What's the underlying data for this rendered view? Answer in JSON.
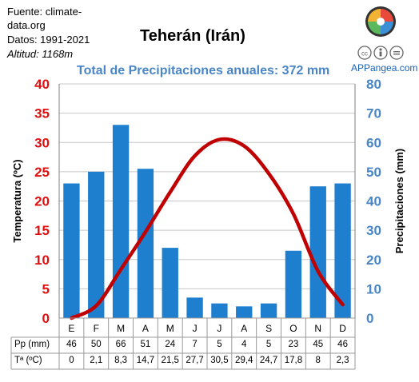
{
  "source": {
    "line1": "Fuente: climate-",
    "line2": "data.org",
    "years": "Datos: 1991-2021",
    "altitude": "Altitud: 1168m"
  },
  "brand": "APPangea.com",
  "chart_data": {
    "type": "bar+line",
    "title": "Teherán (Irán)",
    "subtitle": "Total de Precipitaciones anuales: 372 mm",
    "categories": [
      "E",
      "F",
      "M",
      "A",
      "M",
      "J",
      "J",
      "A",
      "S",
      "O",
      "N",
      "D"
    ],
    "series": [
      {
        "name": "Pp (mm)",
        "type": "bar",
        "axis": "right",
        "color": "#1f7fcf",
        "values": [
          46,
          50,
          66,
          51,
          24,
          7,
          5,
          4,
          5,
          23,
          45,
          46
        ]
      },
      {
        "name": "Tª (ºC)",
        "type": "line",
        "axis": "left",
        "color": "#c00000",
        "values": [
          0,
          2.1,
          8.3,
          14.7,
          21.5,
          27.7,
          30.5,
          29.4,
          24.7,
          17.8,
          8,
          2.3
        ]
      }
    ],
    "table_values": {
      "pp": [
        "46",
        "50",
        "66",
        "51",
        "24",
        "7",
        "5",
        "4",
        "5",
        "23",
        "45",
        "46"
      ],
      "t": [
        "0",
        "2,1",
        "8,3",
        "14,7",
        "21,5",
        "27,7",
        "30,5",
        "29,4",
        "24,7",
        "17,8",
        "8",
        "2,3"
      ]
    },
    "ylabel_left": "Temperatura (ºC)",
    "ylabel_right": "Precipitaciones (mm)",
    "ylim_left": [
      0,
      40
    ],
    "ylim_right": [
      0,
      80
    ],
    "ticks_left": [
      0,
      5,
      10,
      15,
      20,
      25,
      30,
      35,
      40
    ],
    "ticks_right": [
      0,
      10,
      20,
      30,
      40,
      50,
      60,
      70,
      80
    ],
    "grid": "horizontal",
    "colors": {
      "left_axis": "#e01010",
      "right_axis": "#4a86c6"
    }
  }
}
